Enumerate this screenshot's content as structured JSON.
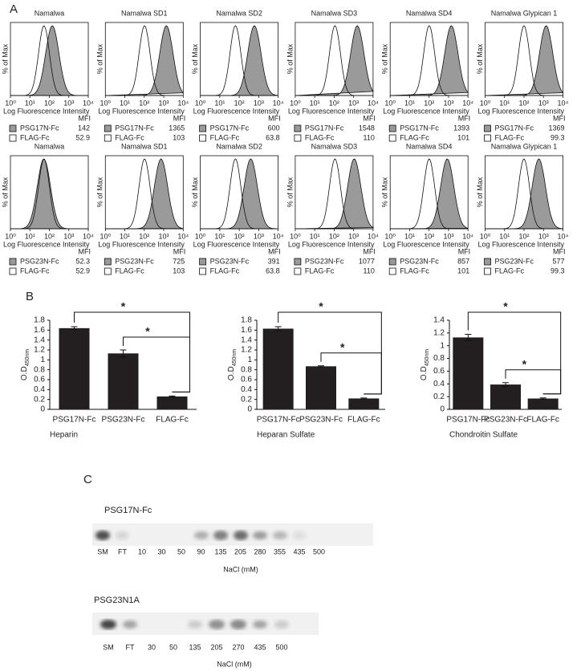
{
  "panel_labels": [
    "A",
    "B",
    "C"
  ],
  "panel_a": {
    "x_label": "Log Fluorescence Intensity",
    "y_label": "% of Max",
    "mfi_header": "MFI",
    "log_scale": true,
    "xlim": [
      1,
      10000
    ],
    "xticks": [
      {
        "value": 1,
        "label": "10⁰"
      },
      {
        "value": 10,
        "label": "10¹"
      },
      {
        "value": 100,
        "label": "10²"
      },
      {
        "value": 1000,
        "label": "10³"
      },
      {
        "value": 10000,
        "label": "10⁴"
      }
    ],
    "plots": [
      {
        "title": "Namalwa",
        "sample": "PSG17N-Fc",
        "sample_mfi": 142,
        "control": "FLAG-Fc",
        "control_mfi": 52.9
      },
      {
        "title": "Namalwa SD1",
        "sample": "PSG17N-Fc",
        "sample_mfi": 1365,
        "control": "FLAG-Fc",
        "control_mfi": 103
      },
      {
        "title": "Namalwa SD2",
        "sample": "PSG17N-Fc",
        "sample_mfi": 600,
        "control": "FLAG-Fc",
        "control_mfi": 63.8
      },
      {
        "title": "Namalwa SD3",
        "sample": "PSG17N-Fc",
        "sample_mfi": 1548,
        "control": "FLAG-Fc",
        "control_mfi": 110
      },
      {
        "title": "Namalwa SD4",
        "sample": "PSG17N-Fc",
        "sample_mfi": 1393,
        "control": "FLAG-Fc",
        "control_mfi": 101
      },
      {
        "title": "Namalwa Glypican 1",
        "sample": "PSG17N-Fc",
        "sample_mfi": 1369,
        "control": "FLAG-Fc",
        "control_mfi": 99.3
      },
      {
        "title": "Namalwa",
        "sample": "PSG23N-Fc",
        "sample_mfi": 52.3,
        "control": "FLAG-Fc",
        "control_mfi": 52.9
      },
      {
        "title": "Namalwa SD1",
        "sample": "PSG23N-Fc",
        "sample_mfi": 725,
        "control": "FLAG-Fc",
        "control_mfi": 103
      },
      {
        "title": "Namalwa SD2",
        "sample": "PSG23N-Fc",
        "sample_mfi": 391,
        "control": "FLAG-Fc",
        "control_mfi": 63.8
      },
      {
        "title": "Namalwa SD3",
        "sample": "PSG23N-Fc",
        "sample_mfi": 1077,
        "control": "FLAG-Fc",
        "control_mfi": 110
      },
      {
        "title": "Namalwa SD4",
        "sample": "PSG23N-Fc",
        "sample_mfi": 857,
        "control": "FLAG-Fc",
        "control_mfi": 101
      },
      {
        "title": "Namalwa Glypican 1",
        "sample": "PSG23N-Fc",
        "sample_mfi": 577,
        "control": "FLAG-Fc",
        "control_mfi": 99.3
      }
    ]
  },
  "chart_data": [
    {
      "type": "bar",
      "x_label": "Heparin",
      "y_label": "O.D",
      "y_label_sub": "450nm",
      "color": "#231f20",
      "categories": [
        "PSG17N-Fc",
        "PSG23N-Fc",
        "FLAG-Fc"
      ],
      "values": [
        1.64,
        1.13,
        0.26
      ],
      "error": [
        0.03,
        0.07,
        0.01
      ],
      "ylim": [
        0,
        1.8
      ],
      "yticks": [
        0,
        0.2,
        0.4,
        0.6,
        0.8,
        1,
        1.2,
        1.4,
        1.6,
        1.8
      ],
      "annotations": [
        "*",
        "*"
      ]
    },
    {
      "type": "bar",
      "x_label": "Heparan Sulfate",
      "y_label": "O.D",
      "y_label_sub": "450nm",
      "color": "#231f20",
      "categories": [
        "PSG17N-Fc",
        "PSG23N-Fc",
        "FLAG-Fc"
      ],
      "values": [
        1.63,
        0.87,
        0.22
      ],
      "error": [
        0.04,
        0.01,
        0.01
      ],
      "ylim": [
        0,
        1.8
      ],
      "yticks": [
        0,
        0.2,
        0.4,
        0.6,
        0.8,
        1,
        1.2,
        1.4,
        1.6,
        1.8
      ],
      "annotations": [
        "*",
        "*"
      ]
    },
    {
      "type": "bar",
      "x_label": "Chondroitin Sulfate",
      "y_label": "O.D",
      "y_label_sub": "450nm",
      "color": "#231f20",
      "categories": [
        "PSG17N-Fc",
        "PSG23N-Fc",
        "FLAG-Fc"
      ],
      "values": [
        1.13,
        0.39,
        0.17
      ],
      "error": [
        0.05,
        0.03,
        0.01
      ],
      "ylim": [
        0,
        1.4
      ],
      "yticks": [
        0,
        0.2,
        0.4,
        0.6,
        0.8,
        1,
        1.2,
        1.4
      ],
      "annotations": [
        "*",
        "*"
      ]
    }
  ],
  "panel_c": {
    "blots": [
      {
        "name": "PSG17N-Fc",
        "lanes": [
          "SM",
          "FT",
          "10",
          "30",
          "50",
          "90",
          "135",
          "205",
          "280",
          "355",
          "435",
          "500"
        ],
        "x_label": "NaCl (mM)"
      },
      {
        "name": "PSG23N1A",
        "lanes": [
          "SM",
          "FT",
          "30",
          "50",
          "135",
          "205",
          "270",
          "435",
          "500"
        ],
        "x_label": "NaCl (mM)"
      }
    ]
  }
}
